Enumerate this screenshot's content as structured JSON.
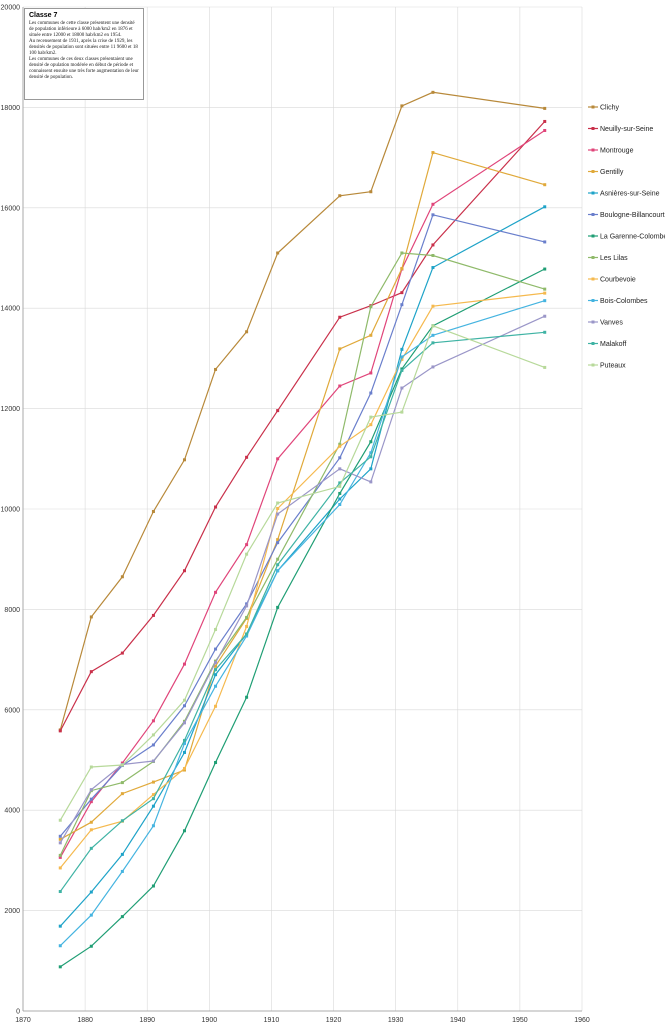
{
  "chart_data": {
    "type": "line",
    "xlim": [
      1870,
      1960
    ],
    "ylim": [
      0,
      20000
    ],
    "x_ticks": [
      "1870",
      "1880",
      "1890",
      "1900",
      "1910",
      "1920",
      "1930",
      "1940",
      "1950",
      "1960"
    ],
    "y_ticks": [
      "0",
      "2000",
      "4000",
      "6000",
      "8000",
      "10000",
      "12000",
      "14000",
      "16000",
      "18000",
      "20000"
    ],
    "grid": true,
    "legend_position": "right",
    "x": [
      1876,
      1881,
      1886,
      1891,
      1896,
      1901,
      1906,
      1911,
      1921,
      1926,
      1931,
      1936,
      1954
    ],
    "series": [
      {
        "name": "Clichy",
        "color": "#b8893a",
        "values": [
          5600,
          7850,
          8650,
          9950,
          10980,
          12780,
          13530,
          15100,
          16240,
          16320,
          18030,
          18300,
          17980
        ]
      },
      {
        "name": "Neuilly-sur-Seine",
        "color": "#c9304a",
        "values": [
          5580,
          6760,
          7130,
          7880,
          8770,
          10040,
          11030,
          11960,
          13820,
          14050,
          14310,
          15260,
          17720
        ]
      },
      {
        "name": "Montrouge",
        "color": "#e0457a",
        "values": [
          3060,
          4170,
          4940,
          5780,
          6910,
          8340,
          9290,
          11000,
          12450,
          12710,
          14780,
          16070,
          17540
        ]
      },
      {
        "name": "Gentilly",
        "color": "#e0a93a",
        "values": [
          3420,
          3760,
          4330,
          4560,
          4800,
          6870,
          7820,
          9390,
          13190,
          13460,
          14790,
          17100,
          16460
        ]
      },
      {
        "name": "Asnières-sur-Seine",
        "color": "#1ea3c8",
        "values": [
          1690,
          2370,
          3120,
          4080,
          5150,
          6700,
          7510,
          8770,
          10200,
          10800,
          13180,
          14810,
          16020
        ]
      },
      {
        "name": "Boulogne-Billancourt",
        "color": "#6a7fcc",
        "values": [
          3480,
          4220,
          4890,
          5300,
          6080,
          7210,
          8110,
          9330,
          11020,
          12310,
          14070,
          15860,
          15320
        ]
      },
      {
        "name": "La Garenne-Colombes",
        "color": "#1f9e74",
        "values": [
          880,
          1290,
          1880,
          2490,
          3590,
          4950,
          6250,
          8040,
          10310,
          11340,
          12790,
          13650,
          14780
        ]
      },
      {
        "name": "Les Lilas",
        "color": "#8fba6a",
        "values": [
          3100,
          4390,
          4550,
          4970,
          5770,
          6970,
          7840,
          9000,
          11290,
          14030,
          15100,
          15050,
          14380
        ]
      },
      {
        "name": "Courbevoie",
        "color": "#f5b94e",
        "values": [
          2850,
          3610,
          3780,
          4310,
          4830,
          6070,
          7660,
          10010,
          11250,
          11680,
          12980,
          14040,
          14300
        ]
      },
      {
        "name": "Bois-Colombes",
        "color": "#45b4e0",
        "values": [
          1300,
          1910,
          2780,
          3690,
          5330,
          6470,
          7470,
          8770,
          10090,
          11120,
          13030,
          13460,
          14150
        ]
      },
      {
        "name": "Vanves",
        "color": "#9a96c8",
        "values": [
          3350,
          4410,
          4910,
          4980,
          5740,
          6940,
          8070,
          9900,
          10800,
          10540,
          12410,
          12830,
          13840
        ]
      },
      {
        "name": "Malakoff",
        "color": "#3fb3a4",
        "values": [
          2380,
          3240,
          3790,
          4230,
          5390,
          6800,
          7510,
          8890,
          10520,
          11040,
          12760,
          13310,
          13520
        ]
      },
      {
        "name": "Puteaux",
        "color": "#b7d99a",
        "values": [
          3800,
          4860,
          4900,
          5500,
          6190,
          7600,
          9100,
          10120,
          10450,
          11830,
          11930,
          13650,
          12820
        ]
      }
    ],
    "annotation": {
      "title": "Classe 7",
      "text": "Les communes de cette classe présentent une densité de population inférieure à 6000 hab/km2 en 1876 et située entre 12000 et 18000 hab/km2 en 1954.\nAu recensement de 1931, après la crise de 1929, les densités de population sont situées entre 11 9600 et 18 100 hab/km2.\nLes communes de ces deux classes  présentaient une densité de opulation modérée en début de période et connaissent ensuite une très forte augmentation de leur densité de population."
    }
  }
}
